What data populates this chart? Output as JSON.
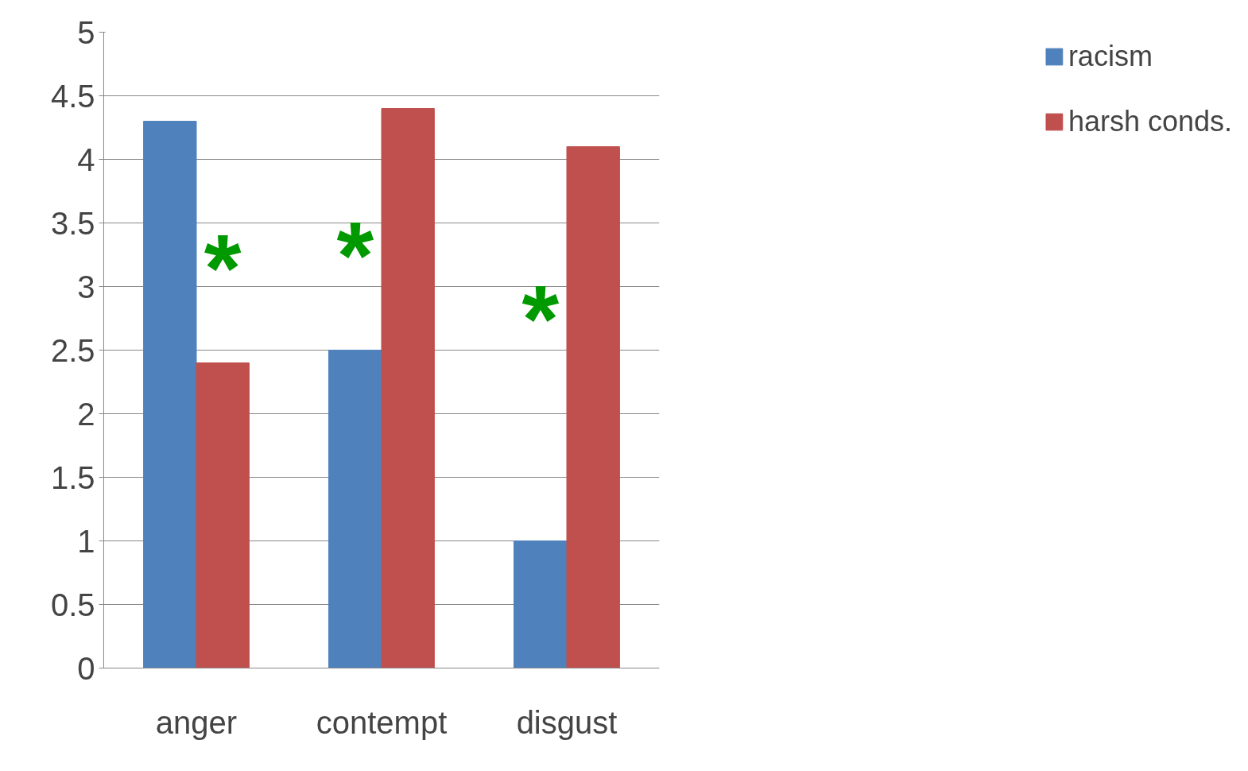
{
  "chart_data": {
    "type": "bar",
    "categories": [
      "anger",
      "contempt",
      "disgust"
    ],
    "series": [
      {
        "name": "racism",
        "color": "#4f81bd",
        "values": [
          4.3,
          2.5,
          1.0
        ]
      },
      {
        "name": "harsh conds.",
        "color": "#c0504d",
        "values": [
          2.4,
          4.4,
          4.1
        ]
      }
    ],
    "ylim": [
      0,
      5
    ],
    "yticks": [
      0,
      0.5,
      1,
      1.5,
      2,
      2.5,
      3,
      3.5,
      4,
      4.5,
      5
    ],
    "grid": "y",
    "legend": "right",
    "annotations": [
      {
        "text": "*",
        "x": "anger",
        "y": 3.15
      },
      {
        "text": "*",
        "x": "contempt",
        "y": 3.25
      },
      {
        "text": "*",
        "x": "disgust",
        "y": 2.75
      }
    ]
  }
}
